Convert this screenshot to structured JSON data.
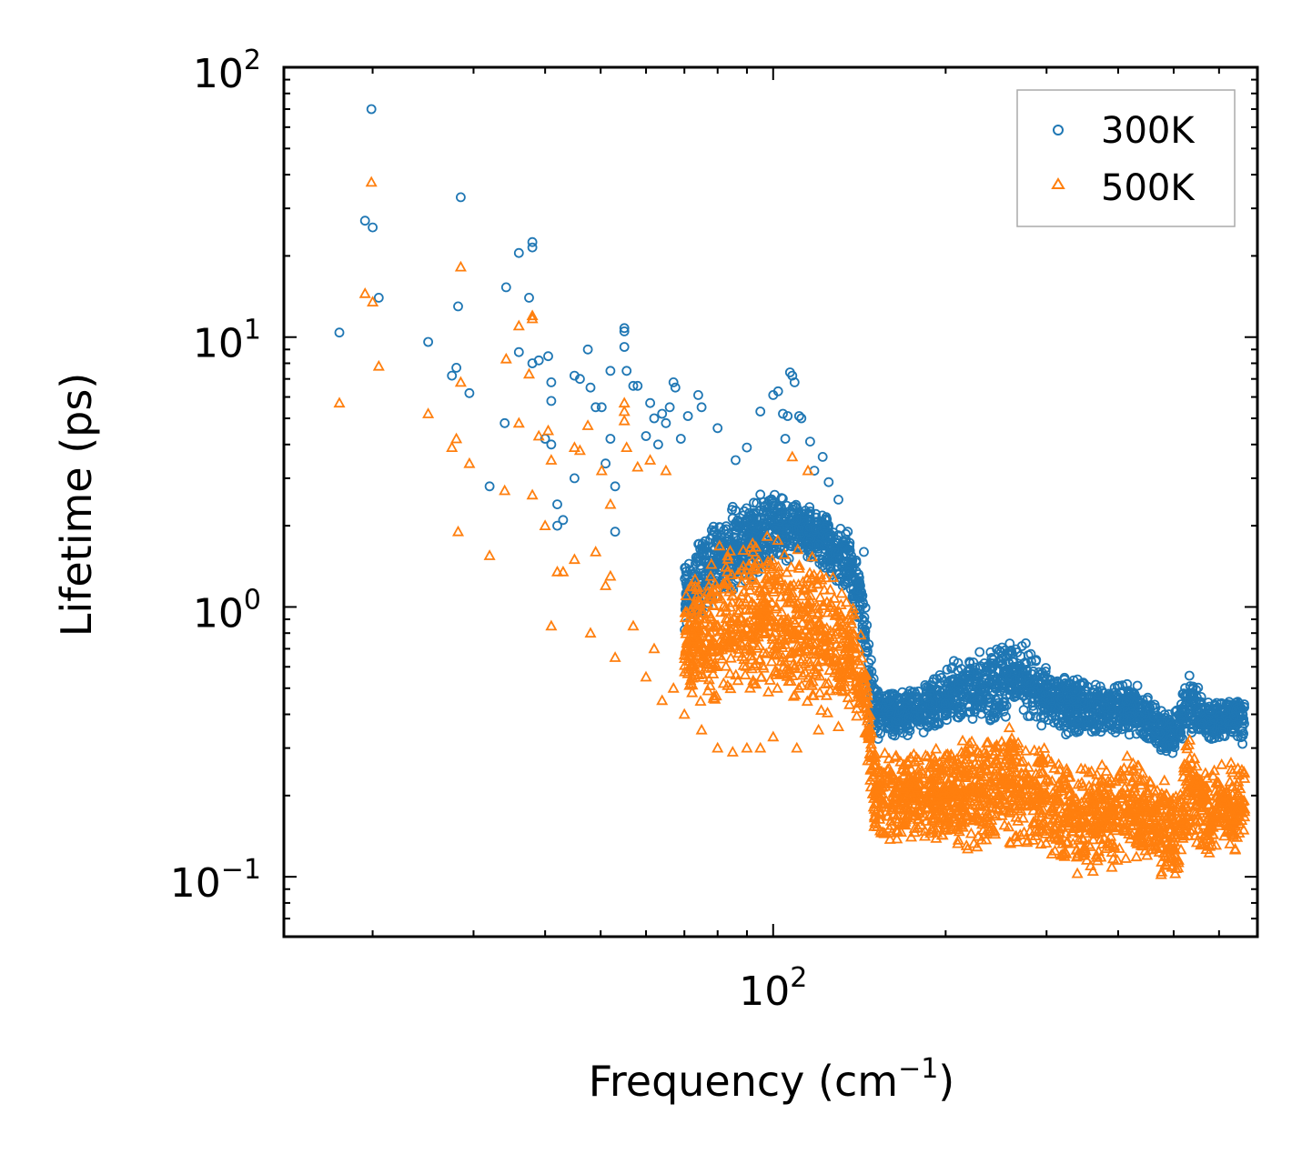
{
  "chart_data": {
    "type": "scatter",
    "title": "",
    "xlabel": "Frequency (cm",
    "xlabel_sup": "−1",
    "xlabel_suffix": ")",
    "ylabel": "Lifetime (ps)",
    "xscale": "log",
    "yscale": "log",
    "xlim": [
      14,
      700
    ],
    "ylim": [
      0.06,
      100
    ],
    "x_tick_labels": [
      {
        "value": 100,
        "base": "10",
        "exp": "2"
      }
    ],
    "y_tick_labels": [
      {
        "value": 100,
        "base": "10",
        "exp": "2"
      },
      {
        "value": 10,
        "base": "10",
        "exp": "1"
      },
      {
        "value": 1,
        "base": "10",
        "exp": "0"
      },
      {
        "value": 0.1,
        "base": "10",
        "exp": "−1"
      }
    ],
    "legend": {
      "position": "top-right",
      "entries": [
        "300K",
        "500K"
      ]
    },
    "series": [
      {
        "name": "300K",
        "marker": "circle",
        "color": "#1f77b4",
        "points": [
          [
            17.5,
            10.4
          ],
          [
            19.4,
            27
          ],
          [
            19.9,
            70
          ],
          [
            20,
            25.5
          ],
          [
            20.5,
            14
          ],
          [
            25,
            9.6
          ],
          [
            27.5,
            7.2
          ],
          [
            28,
            7.7
          ],
          [
            28.2,
            13
          ],
          [
            28.5,
            33
          ],
          [
            29.5,
            6.2
          ],
          [
            32,
            2.8
          ],
          [
            34,
            4.8
          ],
          [
            34.2,
            15.3
          ],
          [
            36,
            20.5
          ],
          [
            36,
            8.8
          ],
          [
            37.5,
            14
          ],
          [
            38,
            21.5
          ],
          [
            38,
            22.5
          ],
          [
            38,
            8
          ],
          [
            39,
            8.2
          ],
          [
            40,
            4.2
          ],
          [
            40.5,
            8.5
          ],
          [
            41,
            6.8
          ],
          [
            41,
            5.8
          ],
          [
            41,
            4
          ],
          [
            42,
            2.4
          ],
          [
            42,
            2
          ],
          [
            43,
            2.1
          ],
          [
            45,
            7.2
          ],
          [
            45,
            3
          ],
          [
            46,
            7
          ],
          [
            47.5,
            9
          ],
          [
            48,
            6.5
          ],
          [
            49,
            5.5
          ],
          [
            50.2,
            5.5
          ],
          [
            51,
            3.4
          ],
          [
            52,
            4.2
          ],
          [
            52,
            7.5
          ],
          [
            53,
            2.8
          ],
          [
            53,
            1.9
          ],
          [
            55,
            10.5
          ],
          [
            55,
            10.8
          ],
          [
            55,
            9.2
          ],
          [
            55.5,
            7.5
          ],
          [
            57,
            6.6
          ],
          [
            58,
            6.6
          ],
          [
            60,
            4.3
          ],
          [
            61,
            5.7
          ],
          [
            62,
            5
          ],
          [
            63,
            4
          ],
          [
            64,
            5.2
          ],
          [
            65,
            4.8
          ],
          [
            66,
            5.5
          ],
          [
            67,
            6.8
          ],
          [
            67.5,
            6.5
          ],
          [
            69,
            4.2
          ],
          [
            71,
            5.1
          ],
          [
            74,
            6.1
          ],
          [
            75,
            5.5
          ],
          [
            80,
            4.6
          ],
          [
            86,
            3.5
          ],
          [
            90,
            3.9
          ],
          [
            95,
            5.3
          ],
          [
            100,
            6.1
          ],
          [
            102,
            6.3
          ],
          [
            104,
            5.2
          ],
          [
            105,
            4.2
          ],
          [
            106,
            5.1
          ],
          [
            107,
            7.4
          ],
          [
            108,
            7.2
          ],
          [
            109,
            6.8
          ],
          [
            111,
            5.1
          ],
          [
            112,
            5
          ],
          [
            116,
            4.1
          ],
          [
            118,
            3.2
          ],
          [
            122,
            3.6
          ],
          [
            125,
            2.9
          ],
          [
            130,
            2.5
          ],
          [
            135,
            1.9
          ],
          [
            138,
            1.3
          ],
          [
            140,
            1.1
          ],
          [
            144,
            1.6
          ]
        ],
        "band": [
          [
            70,
            1.6,
            0.8
          ],
          [
            80,
            2.3,
            1.0
          ],
          [
            90,
            2.6,
            1.2
          ],
          [
            100,
            2.7,
            1.4
          ],
          [
            110,
            2.6,
            1.5
          ],
          [
            120,
            2.3,
            1.4
          ],
          [
            130,
            2.1,
            1.2
          ],
          [
            140,
            1.6,
            0.9
          ],
          [
            144,
            1.3,
            0.6
          ],
          [
            150,
            0.55,
            0.3
          ],
          [
            160,
            0.5,
            0.32
          ],
          [
            180,
            0.52,
            0.33
          ],
          [
            200,
            0.6,
            0.35
          ],
          [
            220,
            0.72,
            0.38
          ],
          [
            240,
            0.7,
            0.36
          ],
          [
            260,
            0.78,
            0.4
          ],
          [
            280,
            0.75,
            0.38
          ],
          [
            300,
            0.6,
            0.34
          ],
          [
            340,
            0.55,
            0.33
          ],
          [
            380,
            0.52,
            0.33
          ],
          [
            420,
            0.55,
            0.33
          ],
          [
            460,
            0.45,
            0.3
          ],
          [
            500,
            0.4,
            0.28
          ],
          [
            530,
            0.6,
            0.34
          ],
          [
            560,
            0.48,
            0.32
          ],
          [
            600,
            0.45,
            0.31
          ],
          [
            640,
            0.47,
            0.32
          ],
          [
            665,
            0.46,
            0.3
          ]
        ]
      },
      {
        "name": "500K",
        "marker": "triangle",
        "color": "#ff7f0e",
        "points": [
          [
            17.5,
            5.7
          ],
          [
            19.4,
            14.5
          ],
          [
            19.9,
            37.5
          ],
          [
            20,
            13.5
          ],
          [
            20.5,
            7.8
          ],
          [
            25,
            5.2
          ],
          [
            27.5,
            3.9
          ],
          [
            28,
            4.2
          ],
          [
            28.2,
            1.9
          ],
          [
            28.5,
            6.8
          ],
          [
            28.5,
            18.2
          ],
          [
            29.5,
            3.4
          ],
          [
            32,
            1.55
          ],
          [
            34,
            2.7
          ],
          [
            34.2,
            8.3
          ],
          [
            36,
            4.8
          ],
          [
            36,
            11
          ],
          [
            37.5,
            7.3
          ],
          [
            38,
            11.7
          ],
          [
            38,
            12
          ],
          [
            38,
            2.6
          ],
          [
            39,
            4.3
          ],
          [
            40,
            2
          ],
          [
            40.5,
            4.5
          ],
          [
            41,
            3.5
          ],
          [
            41,
            0.85
          ],
          [
            42,
            1.35
          ],
          [
            43,
            1.35
          ],
          [
            45,
            3.9
          ],
          [
            45,
            1.5
          ],
          [
            46,
            3.8
          ],
          [
            47.5,
            4.7
          ],
          [
            48,
            0.8
          ],
          [
            49,
            1.6
          ],
          [
            50.2,
            3.2
          ],
          [
            51,
            1.2
          ],
          [
            52,
            1.3
          ],
          [
            52,
            2.4
          ],
          [
            53,
            0.65
          ],
          [
            55,
            5.3
          ],
          [
            55,
            5.7
          ],
          [
            55,
            4.9
          ],
          [
            55.5,
            3.9
          ],
          [
            57,
            0.85
          ],
          [
            58,
            3.3
          ],
          [
            60,
            0.55
          ],
          [
            61,
            3.5
          ],
          [
            62,
            0.7
          ],
          [
            64,
            0.45
          ],
          [
            65,
            3.2
          ],
          [
            67,
            0.5
          ],
          [
            70,
            0.4
          ],
          [
            75,
            0.35
          ],
          [
            80,
            0.3
          ],
          [
            85,
            0.29
          ],
          [
            90,
            0.3
          ],
          [
            95,
            0.3
          ],
          [
            100,
            0.33
          ],
          [
            108,
            3.6
          ],
          [
            110,
            0.3
          ],
          [
            115,
            3.2
          ],
          [
            120,
            0.35
          ],
          [
            130,
            0.36
          ],
          [
            140,
            0.42
          ]
        ],
        "band": [
          [
            70,
            1.2,
            0.45
          ],
          [
            80,
            1.7,
            0.4
          ],
          [
            90,
            1.9,
            0.42
          ],
          [
            100,
            2.0,
            0.42
          ],
          [
            110,
            1.8,
            0.4
          ],
          [
            120,
            1.5,
            0.38
          ],
          [
            130,
            1.3,
            0.38
          ],
          [
            140,
            1.0,
            0.38
          ],
          [
            144,
            0.7,
            0.38
          ],
          [
            150,
            0.3,
            0.14
          ],
          [
            160,
            0.3,
            0.13
          ],
          [
            180,
            0.3,
            0.14
          ],
          [
            200,
            0.33,
            0.13
          ],
          [
            220,
            0.36,
            0.12
          ],
          [
            240,
            0.35,
            0.12
          ],
          [
            260,
            0.38,
            0.13
          ],
          [
            280,
            0.34,
            0.12
          ],
          [
            300,
            0.3,
            0.12
          ],
          [
            340,
            0.28,
            0.1
          ],
          [
            380,
            0.28,
            0.1
          ],
          [
            420,
            0.3,
            0.11
          ],
          [
            460,
            0.25,
            0.1
          ],
          [
            500,
            0.22,
            0.09
          ],
          [
            530,
            0.36,
            0.12
          ],
          [
            560,
            0.28,
            0.12
          ],
          [
            600,
            0.26,
            0.12
          ],
          [
            640,
            0.27,
            0.12
          ],
          [
            665,
            0.26,
            0.13
          ]
        ]
      }
    ]
  }
}
